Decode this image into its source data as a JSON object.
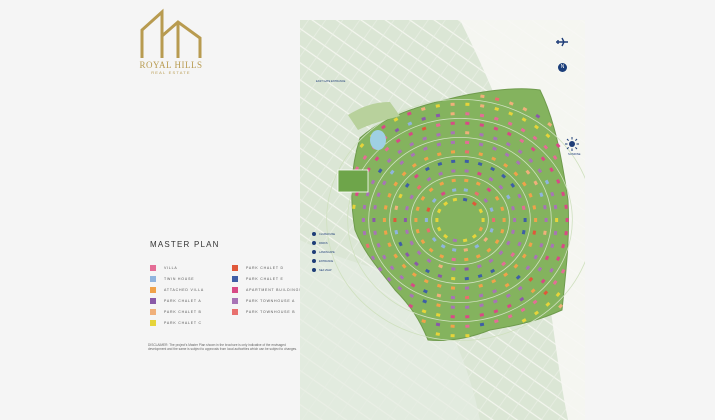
{
  "logo": {
    "name": "ROYAL HILLS",
    "subtitle": "REAL ESTATE",
    "color": "#b89b50"
  },
  "title": "MASTER PLAN",
  "legend": [
    {
      "label": "Villa",
      "color": "#e46d96"
    },
    {
      "label": "Twin House",
      "color": "#8fb4de"
    },
    {
      "label": "Attached Villa",
      "color": "#f0a24a"
    },
    {
      "label": "Park Chalet A",
      "color": "#8a5aa8"
    },
    {
      "label": "Park Chalet B",
      "color": "#f0b07a"
    },
    {
      "label": "Park Chalet C",
      "color": "#e6d43a"
    },
    {
      "label": "Park Chalet D",
      "color": "#e0583a"
    },
    {
      "label": "Park Chalet E",
      "color": "#3f5ea6"
    },
    {
      "label": "Apartment Buildings",
      "color": "#d84a86"
    },
    {
      "label": "Park Townhouse A",
      "color": "#a874b6"
    },
    {
      "label": "Park Townhouse B",
      "color": "#e8706e"
    }
  ],
  "disclaimer": "DISCLAIMER: The project's Master Plan shown in the brochure is only indicative of the envisaged development and the same is subject to approvals from local authorities which can be subject to changes.",
  "map": {
    "north_marker": "N",
    "top_label": "EAST GATE ENTRANCE",
    "sun_label": "SUNRISE",
    "key": [
      "CLUBHOUSE",
      "PARKS",
      "LANDSCAPE",
      "ENTRANCE",
      "SEA VIEW"
    ],
    "colors": {
      "land": "#d7e3d0",
      "park": "#7fae58",
      "road": "#f6f7f2",
      "water": "#9fd0e3",
      "marker": "#1e3d78"
    }
  }
}
